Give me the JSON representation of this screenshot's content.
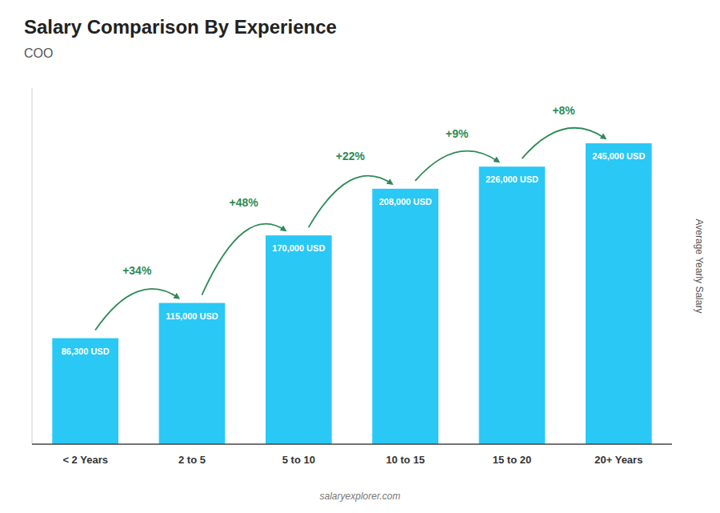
{
  "chart_data": {
    "type": "bar",
    "title": "Salary Comparison By Experience",
    "subtitle": "COO",
    "categories": [
      "< 2 Years",
      "2 to 5",
      "5 to 10",
      "10 to 15",
      "15 to 20",
      "20+ Years"
    ],
    "values": [
      86300,
      115000,
      170000,
      208000,
      226000,
      245000
    ],
    "value_labels": [
      "86,300 USD",
      "115,000 USD",
      "170,000 USD",
      "208,000 USD",
      "226,000 USD",
      "245,000 USD"
    ],
    "data_labels": true,
    "annotations": [
      "+34%",
      "+48%",
      "+22%",
      "+9%",
      "+8%"
    ],
    "ylabel": "Average Yearly Salary",
    "footer": "salaryexplorer.com",
    "color": "#29c8f5",
    "ylim": [
      0,
      290000
    ],
    "tick_labels": "x",
    "grid": false
  }
}
